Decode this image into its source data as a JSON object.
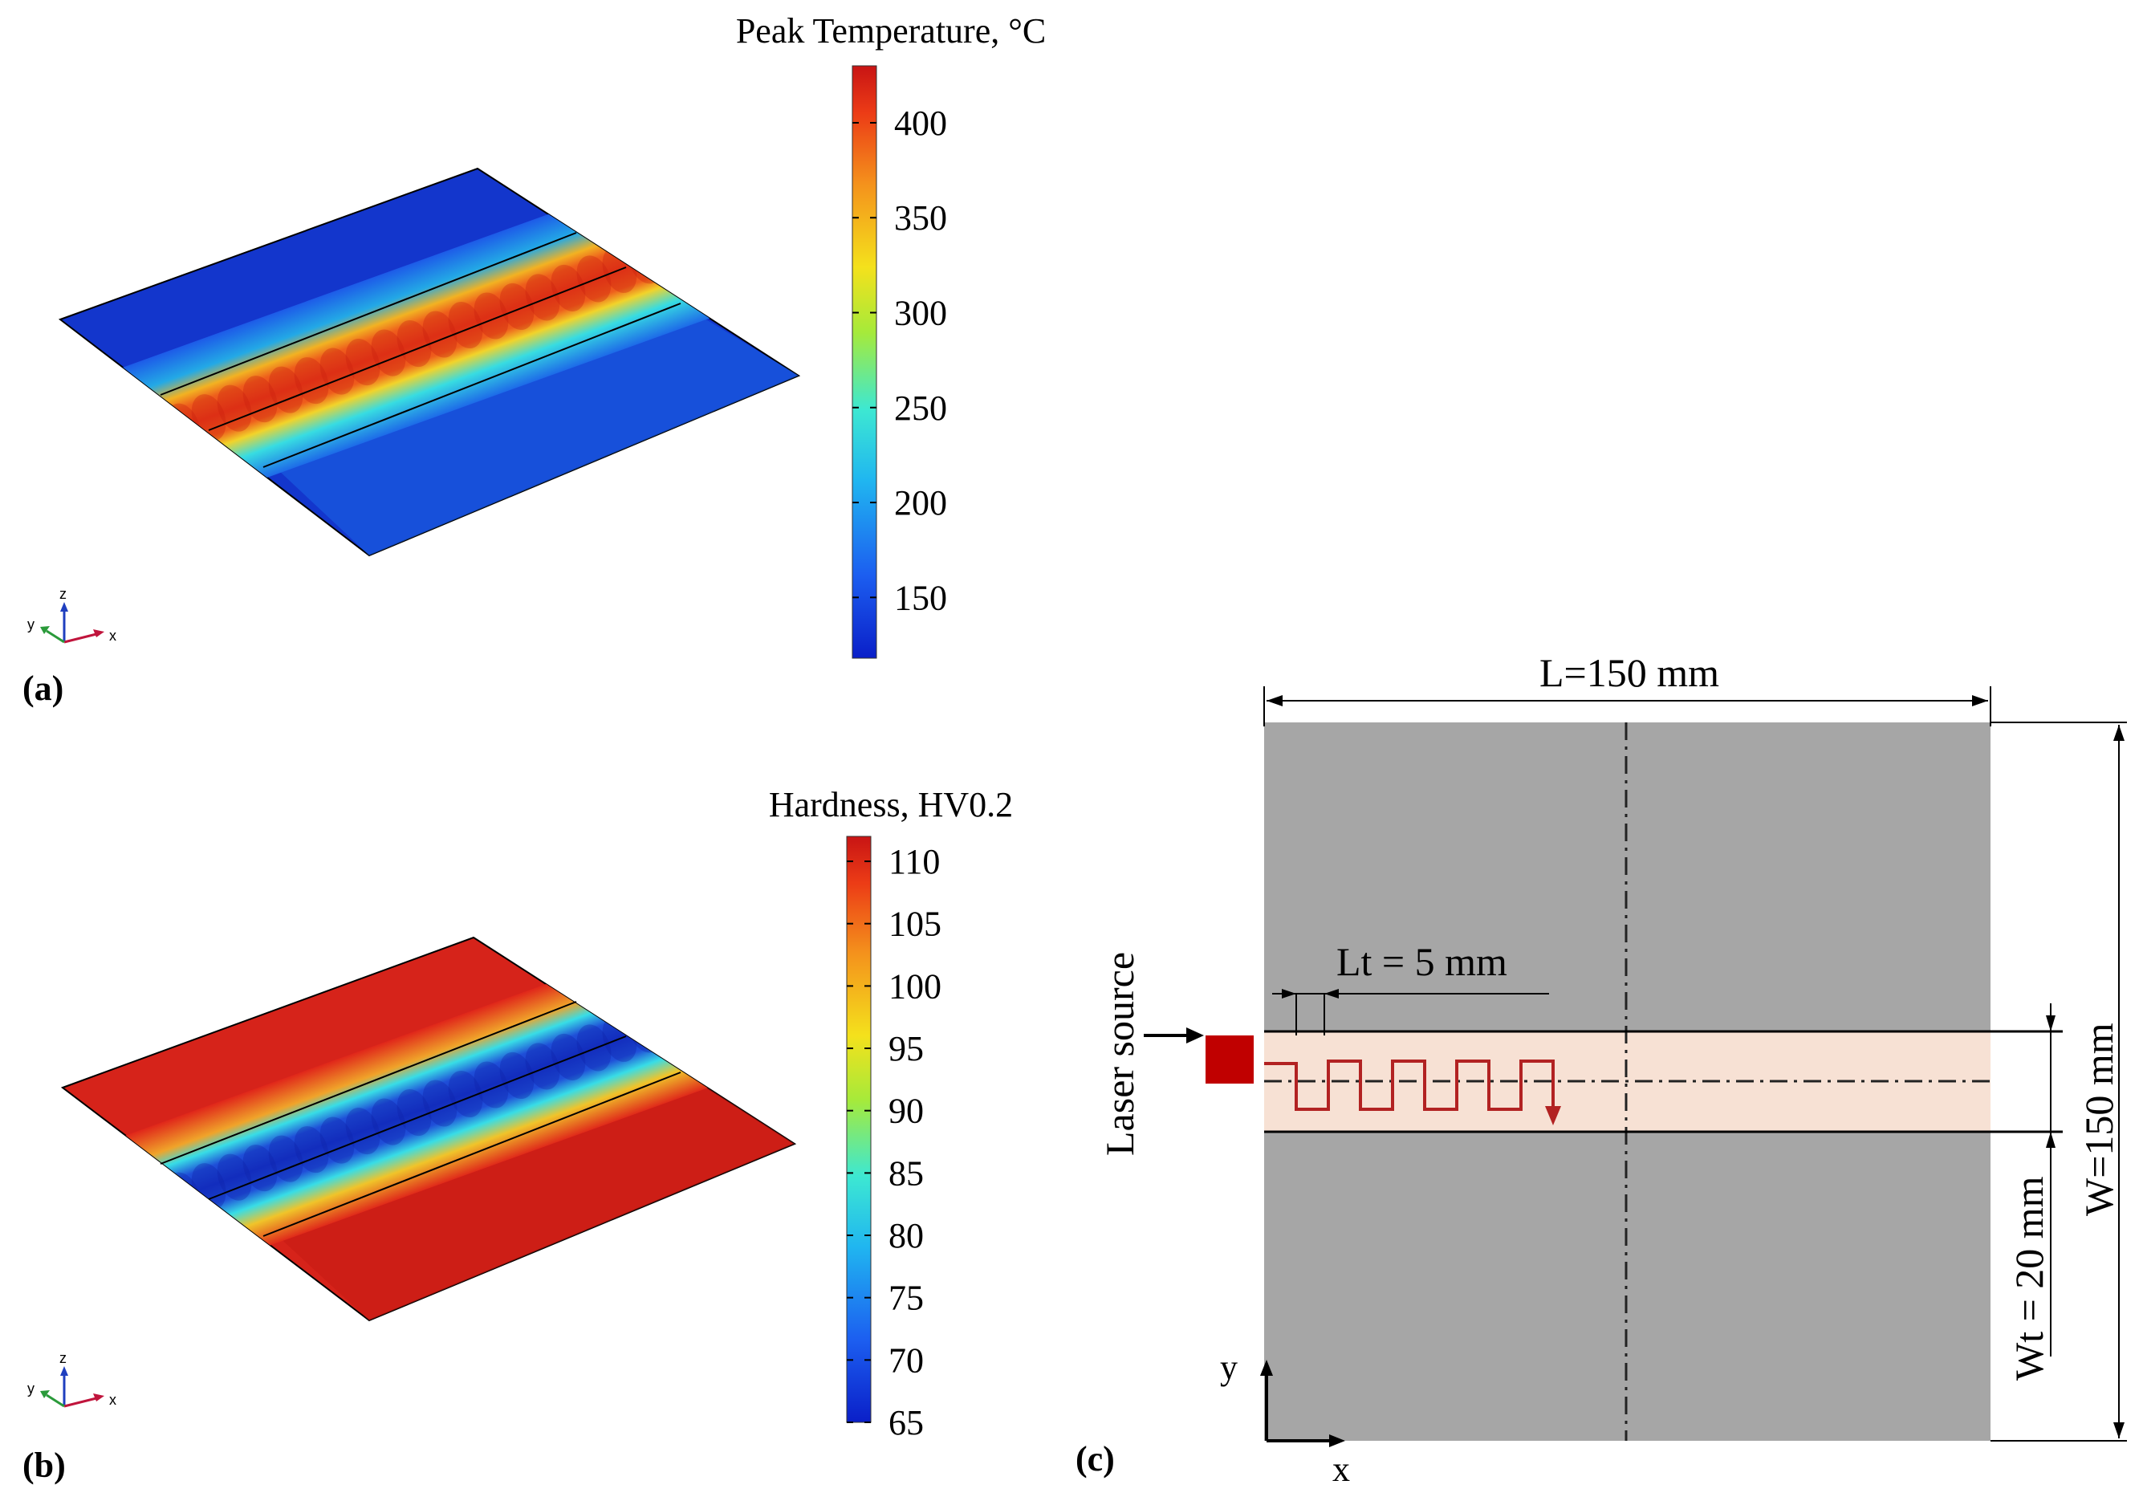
{
  "panels": {
    "a": {
      "label": "(a)",
      "colorbar": {
        "title": "Peak Temperature, °C",
        "ticks": [
          "400",
          "350",
          "300",
          "250",
          "200",
          "150"
        ],
        "tick_values": [
          400,
          350,
          300,
          250,
          200,
          150
        ],
        "range": [
          118,
          430
        ],
        "colormap": "jet"
      },
      "plate_colors": {
        "base": "#1533c8",
        "band": "#e8451d",
        "halo": "#28c6e0"
      },
      "triad": {
        "x": "x",
        "y": "y",
        "z": "z"
      }
    },
    "b": {
      "label": "(b)",
      "colorbar": {
        "title": "Hardness, HV0.2",
        "ticks": [
          "110",
          "105",
          "100",
          "95",
          "90",
          "85",
          "80",
          "75",
          "70",
          "65"
        ],
        "tick_values": [
          110,
          105,
          100,
          95,
          90,
          85,
          80,
          75,
          70,
          65
        ],
        "range": [
          65,
          112
        ],
        "colormap": "jet"
      },
      "plate_colors": {
        "base": "#d8231a",
        "band": "#1f3ed6",
        "halo": "#3fd6e8"
      },
      "triad": {
        "x": "x",
        "y": "y",
        "z": "z"
      }
    },
    "c": {
      "label": "(c)",
      "plate_length": "L=150 mm",
      "plate_width": "W=150 mm",
      "track_length": "Lt = 5 mm",
      "track_width": "Wt = 20 mm",
      "laser_label": "Laser source",
      "axis_x": "x",
      "axis_y": "y",
      "colors": {
        "plate": "#a6a6a6",
        "track_zone": "#f7e1d4",
        "laser_path": "#b22222"
      }
    }
  }
}
